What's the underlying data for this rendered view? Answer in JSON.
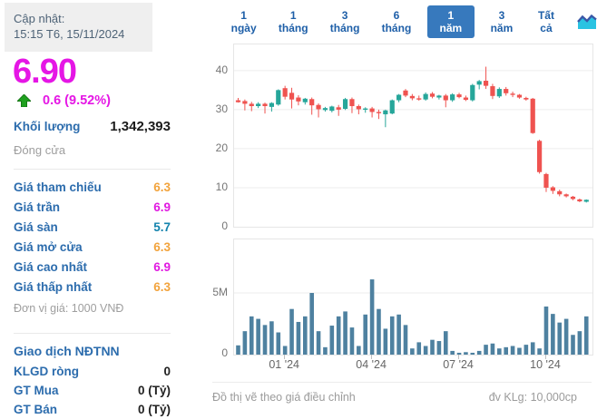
{
  "left_panel": {
    "updated_label": "Cập nhật:",
    "updated_time": "15:15 T6, 15/11/2024",
    "price": "6.90",
    "change": "0.6 (9.52%)",
    "price_color": "#e516e5",
    "arrow_color": "#1fa01f",
    "volume_label": "Khối lượng",
    "volume_value": "1,342,393",
    "close_label": "Đóng cửa",
    "price_rows": [
      {
        "label": "Giá tham chiếu",
        "value": "6.3",
        "color": "#f2a33c"
      },
      {
        "label": "Giá trần",
        "value": "6.9",
        "color": "#e01ae0"
      },
      {
        "label": "Giá sàn",
        "value": "5.7",
        "color": "#1383ad"
      },
      {
        "label": "Giá mở cửa",
        "value": "6.3",
        "color": "#f2a33c"
      },
      {
        "label": "Giá cao nhất",
        "value": "6.9",
        "color": "#e01ae0"
      },
      {
        "label": "Giá thấp nhất",
        "value": "6.3",
        "color": "#f2a33c"
      }
    ],
    "unit_note": "Đơn vị giá: 1000 VNĐ",
    "foreign": {
      "title": "Giao dịch NĐTNN",
      "rows": [
        {
          "label": "KLGD ròng",
          "value": "0"
        },
        {
          "label": "GT Mua",
          "value": "0 (Tỷ)"
        },
        {
          "label": "GT Bán",
          "value": "0 (Tỷ)"
        }
      ]
    }
  },
  "toolbar": {
    "ranges": [
      "1 ngày",
      "1 tháng",
      "3 tháng",
      "6 tháng",
      "1 năm",
      "3 năm",
      "Tất cả"
    ],
    "selected": "1 năm",
    "selected_bg": "#3779bd",
    "chart_icon": "area-chart-icon"
  },
  "footer": {
    "left": "Đồ thị vẽ theo giá điều chỉnh",
    "right": "đv KLg: 10,000cp"
  },
  "chart_data": {
    "type": "candlestick+volume",
    "title": "",
    "legend": "none",
    "grid": "horizontal-only",
    "price_axis": {
      "min": 0,
      "max": 46.7,
      "gridlines": [
        10,
        20,
        30,
        40
      ],
      "tick_labels": [
        "0",
        "10",
        "20",
        "30",
        "40"
      ]
    },
    "volume_axis": {
      "max_millions": 9.34,
      "gridline_millions": 5,
      "tick_labels": [
        "5M",
        "0"
      ]
    },
    "x_ticks": [
      {
        "index": 7,
        "label": "01 '24"
      },
      {
        "index": 20,
        "label": "04 '24"
      },
      {
        "index": 33,
        "label": "07 '24"
      },
      {
        "index": 46,
        "label": "10 '24"
      }
    ],
    "up_color": "#26a69a",
    "down_color": "#ef5350",
    "volume_color": "#4e81a0",
    "candles_ohlc": [
      [
        32.4,
        33.0,
        31.8,
        31.9
      ],
      [
        32.2,
        32.6,
        29.8,
        31.5
      ],
      [
        31.5,
        32.0,
        29.6,
        30.9
      ],
      [
        30.9,
        31.9,
        30.4,
        31.5
      ],
      [
        31.5,
        31.8,
        29.0,
        30.9
      ],
      [
        30.7,
        31.9,
        29.5,
        31.7
      ],
      [
        31.3,
        35.2,
        31.0,
        35.0
      ],
      [
        35.5,
        36.1,
        32.6,
        33.3
      ],
      [
        34.3,
        35.6,
        30.3,
        32.6
      ],
      [
        33.1,
        33.7,
        31.1,
        32.1
      ],
      [
        31.9,
        33.0,
        31.3,
        32.8
      ],
      [
        32.7,
        33.1,
        28.7,
        31.1
      ],
      [
        31.2,
        31.6,
        28.0,
        30.1
      ],
      [
        29.9,
        30.7,
        29.5,
        30.4
      ],
      [
        29.7,
        31.0,
        29.3,
        30.8
      ],
      [
        30.6,
        31.2,
        28.4,
        30.0
      ],
      [
        30.2,
        33.0,
        29.9,
        32.7
      ],
      [
        32.7,
        33.1,
        29.1,
        30.9
      ],
      [
        30.9,
        31.3,
        28.8,
        30.1
      ],
      [
        30.0,
        30.6,
        29.2,
        30.3
      ],
      [
        30.3,
        30.7,
        28.0,
        29.4
      ],
      [
        29.4,
        30.0,
        27.6,
        29.2
      ],
      [
        28.8,
        30.0,
        25.5,
        29.8
      ],
      [
        29.0,
        32.6,
        28.8,
        32.4
      ],
      [
        32.4,
        34.0,
        31.9,
        33.8
      ],
      [
        34.9,
        35.3,
        33.2,
        33.6
      ],
      [
        33.5,
        34.0,
        32.4,
        32.9
      ],
      [
        32.9,
        33.6,
        32.3,
        32.7
      ],
      [
        32.6,
        34.4,
        32.3,
        34.0
      ],
      [
        34.1,
        34.5,
        32.9,
        33.3
      ],
      [
        33.1,
        33.8,
        32.6,
        33.6
      ],
      [
        33.6,
        34.0,
        30.6,
        32.4
      ],
      [
        32.4,
        34.2,
        32.0,
        33.9
      ],
      [
        33.9,
        34.3,
        32.9,
        33.2
      ],
      [
        33.1,
        33.6,
        32.2,
        32.5
      ],
      [
        32.4,
        36.6,
        32.1,
        36.3
      ],
      [
        36.4,
        37.6,
        35.2,
        37.3
      ],
      [
        37.4,
        41.0,
        35.3,
        36.1
      ],
      [
        36.0,
        36.6,
        32.7,
        33.5
      ],
      [
        33.4,
        35.7,
        33.0,
        35.3
      ],
      [
        35.3,
        35.8,
        33.6,
        34.2
      ],
      [
        34.1,
        34.6,
        33.2,
        33.8
      ],
      [
        33.8,
        34.0,
        32.8,
        33.1
      ],
      [
        33.0,
        33.3,
        32.3,
        32.6
      ],
      [
        32.8,
        33.0,
        23.8,
        24.0
      ],
      [
        22.0,
        22.3,
        13.6,
        14.0
      ],
      [
        13.5,
        13.8,
        8.9,
        10.0
      ],
      [
        10.1,
        10.4,
        8.4,
        9.2
      ],
      [
        9.1,
        9.5,
        7.8,
        8.3
      ],
      [
        8.3,
        8.5,
        7.5,
        7.8
      ],
      [
        7.7,
        7.9,
        6.8,
        7.1
      ],
      [
        7.0,
        7.2,
        6.3,
        6.5
      ],
      [
        6.4,
        7.0,
        6.2,
        6.9
      ]
    ],
    "volumes_millions": [
      0.75,
      1.9,
      3.1,
      2.9,
      2.4,
      2.7,
      1.8,
      0.7,
      3.7,
      2.65,
      3.1,
      5.0,
      1.9,
      0.6,
      2.35,
      3.1,
      3.5,
      2.2,
      0.7,
      3.25,
      6.1,
      3.7,
      2.1,
      3.1,
      3.25,
      2.4,
      0.5,
      1.0,
      0.7,
      1.2,
      1.1,
      1.9,
      0.3,
      0.15,
      0.2,
      0.15,
      0.3,
      0.8,
      0.9,
      0.5,
      0.6,
      0.7,
      0.55,
      0.8,
      1.0,
      0.5,
      3.9,
      3.3,
      2.6,
      2.9,
      1.6,
      1.9,
      3.1
    ]
  }
}
